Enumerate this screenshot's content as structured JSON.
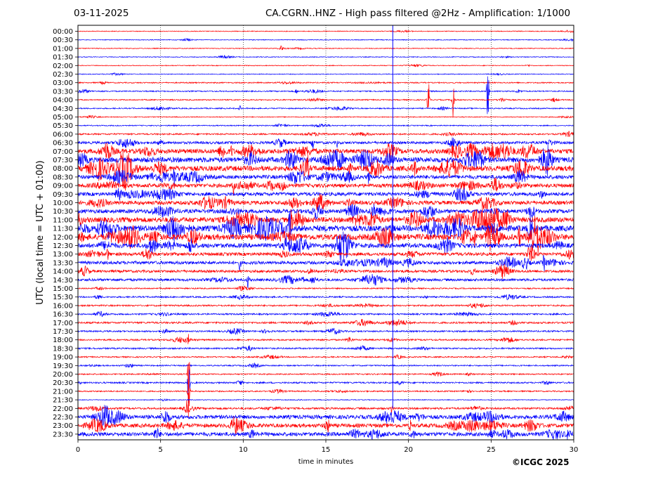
{
  "header": {
    "date": "03-11-2025",
    "title": "CA.CGRN..HNZ - High pass filtered @2Hz - Amplification: 1/1000"
  },
  "footer": {
    "copyright": "©ICGC 2025"
  },
  "colors": {
    "red_trace": "#ff0000",
    "blue_trace": "#0000ff",
    "grid": "#000000"
  },
  "chart_data": {
    "type": "line",
    "title": "CA.CGRN..HNZ - High pass filtered @2Hz - Amplification: 1/1000",
    "xlabel": "time in minutes",
    "ylabel": "UTC (local time = UTC + 01:00)",
    "xlim": [
      0,
      30
    ],
    "x_ticks": [
      0,
      5,
      10,
      15,
      20,
      25,
      30
    ],
    "grid": "vertical dotted lines every 5 minutes",
    "legend": "none",
    "rows": [
      "00:00",
      "00:30",
      "01:00",
      "01:30",
      "02:00",
      "02:30",
      "03:00",
      "03:30",
      "04:00",
      "04:30",
      "05:00",
      "05:30",
      "06:00",
      "06:30",
      "07:00",
      "07:30",
      "08:00",
      "08:30",
      "09:00",
      "09:30",
      "10:00",
      "10:30",
      "11:00",
      "11:30",
      "12:00",
      "12:30",
      "13:00",
      "13:30",
      "14:00",
      "14:30",
      "15:00",
      "15:30",
      "16:00",
      "16:30",
      "17:00",
      "17:30",
      "18:00",
      "18:30",
      "19:00",
      "19:30",
      "20:00",
      "20:30",
      "21:00",
      "21:30",
      "22:00",
      "22:30",
      "23:00",
      "23:30"
    ],
    "row_color_pattern": [
      "red",
      "blue"
    ],
    "noise_level": [
      0.6,
      0.6,
      0.6,
      0.6,
      0.6,
      0.6,
      0.9,
      0.9,
      0.9,
      0.9,
      0.7,
      0.8,
      1.2,
      2.0,
      3.5,
      4.0,
      4.0,
      3.0,
      3.0,
      2.8,
      3.0,
      3.0,
      4.0,
      4.5,
      4.5,
      3.5,
      2.5,
      2.5,
      2.0,
      2.0,
      1.0,
      1.2,
      1.2,
      1.2,
      1.4,
      1.2,
      1.2,
      1.2,
      1.0,
      1.0,
      1.0,
      1.2,
      1.0,
      0.6,
      1.5,
      3.0,
      3.0,
      3.0
    ],
    "events": [
      {
        "row": 2,
        "minute": 12.3,
        "amp": 4
      },
      {
        "row": 7,
        "minute": 13.2,
        "amp": 4
      },
      {
        "row": 8,
        "minute": 21.2,
        "amp": 36
      },
      {
        "row": 8,
        "minute": 22.7,
        "amp": 38
      },
      {
        "row": 7,
        "minute": 24.8,
        "amp": 46
      },
      {
        "row": 9,
        "minute": 9.8,
        "amp": 4
      },
      {
        "row": 13,
        "minute": 14.2,
        "amp": 12
      },
      {
        "row": 13,
        "minute": 15.7,
        "amp": 6
      },
      {
        "row": 14,
        "minute": 9.3,
        "amp": 8
      },
      {
        "row": 15,
        "minute": 10.5,
        "amp": 9
      },
      {
        "row": 16,
        "minute": 13.9,
        "amp": 12
      },
      {
        "row": 17,
        "minute": 5.8,
        "amp": 14
      },
      {
        "row": 17,
        "minute": 17.6,
        "amp": 10
      },
      {
        "row": 18,
        "minute": 9.4,
        "amp": 12
      },
      {
        "row": 22,
        "minute": 12.9,
        "amp": 28
      },
      {
        "row": 23,
        "minute": 12.8,
        "amp": 30
      },
      {
        "row": 24,
        "minute": 24.0,
        "amp": 14
      },
      {
        "row": 24,
        "minute": 26.7,
        "amp": 16
      },
      {
        "row": 25,
        "minute": 12.6,
        "amp": 14
      },
      {
        "row": 26,
        "minute": 1.8,
        "amp": 8
      },
      {
        "row": 27,
        "minute": 9.8,
        "amp": 10
      },
      {
        "row": 27,
        "minute": 28.2,
        "amp": 10
      },
      {
        "row": 29,
        "minute": 10.3,
        "amp": 12
      },
      {
        "row": 29,
        "minute": 13.6,
        "amp": 8
      },
      {
        "row": 36,
        "minute": 6.7,
        "amp": 6
      },
      {
        "row": 40,
        "minute": 6.7,
        "amp": 40
      },
      {
        "row": 41,
        "minute": 6.7,
        "amp": 40
      },
      {
        "row": 42,
        "minute": 6.7,
        "amp": 40
      },
      {
        "row": 44,
        "minute": 6.6,
        "amp": 8
      },
      {
        "row": 46,
        "minute": 20.1,
        "amp": 8
      },
      {
        "row": 23,
        "minute": 19.0,
        "amp": 20
      },
      {
        "row": 44,
        "minute": 19.0,
        "amp": 10
      }
    ],
    "vertical_spike": {
      "minute": 19.05,
      "from_row": 0,
      "to_row": 44
    }
  }
}
